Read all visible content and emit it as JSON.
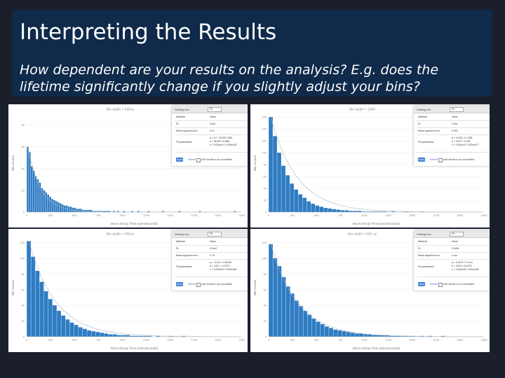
{
  "slide": {
    "title": "Interpreting the Results",
    "subtitle": "How dependent are your results on the analysis? E.g. does the lifetime significantly change if you slightly adjust your bins?"
  },
  "colors": {
    "background": "#1b1f2b",
    "title_bar": "#0f2a4a",
    "bar_fill": "#2e7cc3",
    "fit_line": "#9fb6c9",
    "apply_button": "#3a7bd5"
  },
  "panels": [
    {
      "chart_title": "Bin width = 500ns",
      "x_label": "Muon Decay Time (nanoseconds)",
      "y_label": "Bin Counts",
      "x_ticks": [
        "0",
        "250",
        "500",
        "750",
        "1000",
        "1250",
        "1500",
        "1750",
        "2000",
        "2250"
      ],
      "y_ticks": [
        "0",
        "20",
        "40",
        "60",
        "80"
      ],
      "ctrl": {
        "setting": "Settings for: ",
        "selected": "Fit",
        "header": [
          "Attribute",
          "Value"
        ],
        "rows": [
          [
            "R²",
            "0.8xx"
          ],
          [
            "Mean squared error",
            "2.2x"
          ],
          [
            "Fit parameters",
            "a = 5.7 / 99.82 2.682\nb = 38.38 / 12.883\nc = 0.00xxx4 / 0.00xxx32"
          ]
        ],
        "apply": "Apply",
        "submit": "Submit",
        "note": "Add results to my annotation"
      }
    },
    {
      "chart_title": "Bin width = 1000",
      "x_label": "Muon Decay Time (nanoseconds)",
      "y_label": "Bin Counts",
      "x_ticks": [
        "0",
        "250",
        "500",
        "750",
        "1000",
        "1250",
        "1500",
        "1750",
        "2000",
        "2250"
      ],
      "y_ticks": [
        "0",
        "20",
        "40",
        "60",
        "80",
        "100",
        "120",
        "140",
        "160"
      ],
      "ctrl": {
        "setting": "Settings for: ",
        "selected": "Fit",
        "header": [
          "Attribute",
          "Value"
        ],
        "rows": [
          [
            "R²",
            "0.9xx"
          ],
          [
            "Mean squared error",
            "0.902"
          ],
          [
            "Fit parameters",
            "a = 0.438 / 4 1.265\nb = 103.7 / 3.795\nc = 0.00xxx2 / 0.00xxx77"
          ]
        ],
        "apply": "Apply",
        "submit": "Submit",
        "note": "Add results to my annotation"
      }
    },
    {
      "chart_title": "Bin width = 750ns",
      "x_label": "Muon Decay Time (nanoseconds)",
      "y_label": "Bin Counts",
      "x_ticks": [
        "0",
        "250",
        "500",
        "750",
        "1000",
        "1250",
        "1500",
        "1750",
        "2000",
        "2250"
      ],
      "y_ticks": [
        "0",
        "20",
        "40",
        "60",
        "80",
        "100",
        "120"
      ],
      "ctrl": {
        "setting": "Settings for: ",
        "selected": "Fit",
        "header": [
          "Attribute",
          "Value"
        ],
        "rows": [
          [
            "R²",
            "0.9xx2"
          ],
          [
            "Mean squared error",
            "0.75"
          ],
          [
            "Fit parameters",
            "a = -0.2xx / 1.00294\nb = 103.1 / 4.2797\nc = 0.00xxx9 / 0.00xxx52"
          ]
        ],
        "apply": "Apply",
        "submit": "Submit",
        "note": "Add results to my annotation"
      }
    },
    {
      "chart_title": "Bin width = 600 ns",
      "x_label": "Muon Decay Time (nanoseconds)",
      "y_label": "Bin Counts",
      "x_ticks": [
        "0",
        "250",
        "500",
        "750",
        "1000",
        "1250",
        "1500",
        "1750",
        "2000",
        "2250"
      ],
      "y_ticks": [
        "0",
        "20",
        "40",
        "60",
        "80",
        "100",
        "120"
      ],
      "ctrl": {
        "setting": "Settings for: ",
        "selected": "Fit",
        "header": [
          "Attribute",
          "Value"
        ],
        "rows": [
          [
            "R²",
            "0.9x5x"
          ],
          [
            "Mean squared error",
            "1.xxx"
          ],
          [
            "Fit parameters",
            "a = 0.4x27 / 0.7xx4\nb = 100.0 / 5.4975\nc = 0.00xxx8 / 0.00xx226"
          ]
        ],
        "apply": "Apply",
        "submit": "Submit",
        "note": "Add results to my annotation"
      }
    }
  ],
  "chart_data": [
    {
      "type": "bar",
      "title": "Bin width = 500ns",
      "xlabel": "Muon Decay Time (nanoseconds)",
      "ylabel": "Bin Counts",
      "ylim": [
        0,
        90
      ],
      "values": [
        60,
        55,
        42,
        38,
        33,
        30,
        27,
        22,
        20,
        18,
        16,
        14,
        12,
        11,
        10,
        9,
        8,
        7,
        6,
        6,
        5,
        5,
        4,
        4,
        3,
        3,
        3,
        2,
        2,
        2,
        2,
        2,
        1,
        1,
        1,
        1,
        1,
        1,
        1,
        1,
        1,
        0,
        1,
        0,
        1,
        0,
        0,
        1,
        0,
        0,
        0,
        1,
        0,
        0,
        1,
        0,
        0,
        0,
        0,
        1,
        0,
        0,
        0,
        0,
        0,
        0,
        1,
        0,
        0,
        0,
        0,
        0,
        0,
        0,
        1,
        0,
        0,
        0,
        0,
        0,
        0,
        0,
        0,
        0,
        1,
        0,
        0,
        0,
        0,
        0,
        0,
        0,
        0,
        0,
        0,
        0,
        0,
        0,
        0,
        0,
        0,
        1,
        0,
        0,
        0
      ]
    },
    {
      "type": "bar",
      "title": "Bin width = 1000",
      "xlabel": "Muon Decay Time (nanoseconds)",
      "ylabel": "Bin Counts",
      "ylim": [
        0,
        165
      ],
      "values": [
        160,
        128,
        100,
        78,
        62,
        48,
        38,
        30,
        24,
        18,
        14,
        11,
        9,
        7,
        6,
        5,
        4,
        3,
        3,
        2,
        2,
        2,
        1,
        1,
        1,
        1,
        1,
        1,
        0,
        1,
        0,
        0,
        1,
        0,
        0,
        0,
        1,
        0,
        0,
        0,
        0,
        0,
        0,
        0,
        0,
        0,
        0,
        0,
        0,
        0,
        0
      ]
    },
    {
      "type": "bar",
      "title": "Bin width = 750ns",
      "xlabel": "Muon Decay Time (nanoseconds)",
      "ylabel": "Bin Counts",
      "ylim": [
        0,
        125
      ],
      "values": [
        122,
        102,
        84,
        70,
        58,
        48,
        40,
        33,
        27,
        22,
        18,
        15,
        12,
        10,
        8,
        7,
        6,
        5,
        4,
        3,
        3,
        2,
        2,
        2,
        1,
        1,
        1,
        1,
        1,
        0,
        1,
        0,
        0,
        1,
        0,
        0,
        1,
        0,
        0,
        0,
        0,
        0,
        0,
        0,
        0,
        0,
        0,
        0,
        0,
        0
      ]
    },
    {
      "type": "bar",
      "title": "Bin width = 600 ns",
      "xlabel": "Muon Decay Time (nanoseconds)",
      "ylabel": "Bin Counts",
      "ylim": [
        0,
        125
      ],
      "values": [
        118,
        100,
        90,
        76,
        64,
        55,
        46,
        39,
        33,
        28,
        23,
        19,
        16,
        13,
        11,
        9,
        8,
        7,
        6,
        5,
        4,
        4,
        3,
        3,
        2,
        2,
        2,
        2,
        1,
        1,
        1,
        1,
        1,
        1,
        0,
        1,
        0,
        1,
        0,
        0,
        1,
        0,
        0,
        0,
        0,
        0,
        0,
        0,
        0,
        0
      ]
    }
  ]
}
